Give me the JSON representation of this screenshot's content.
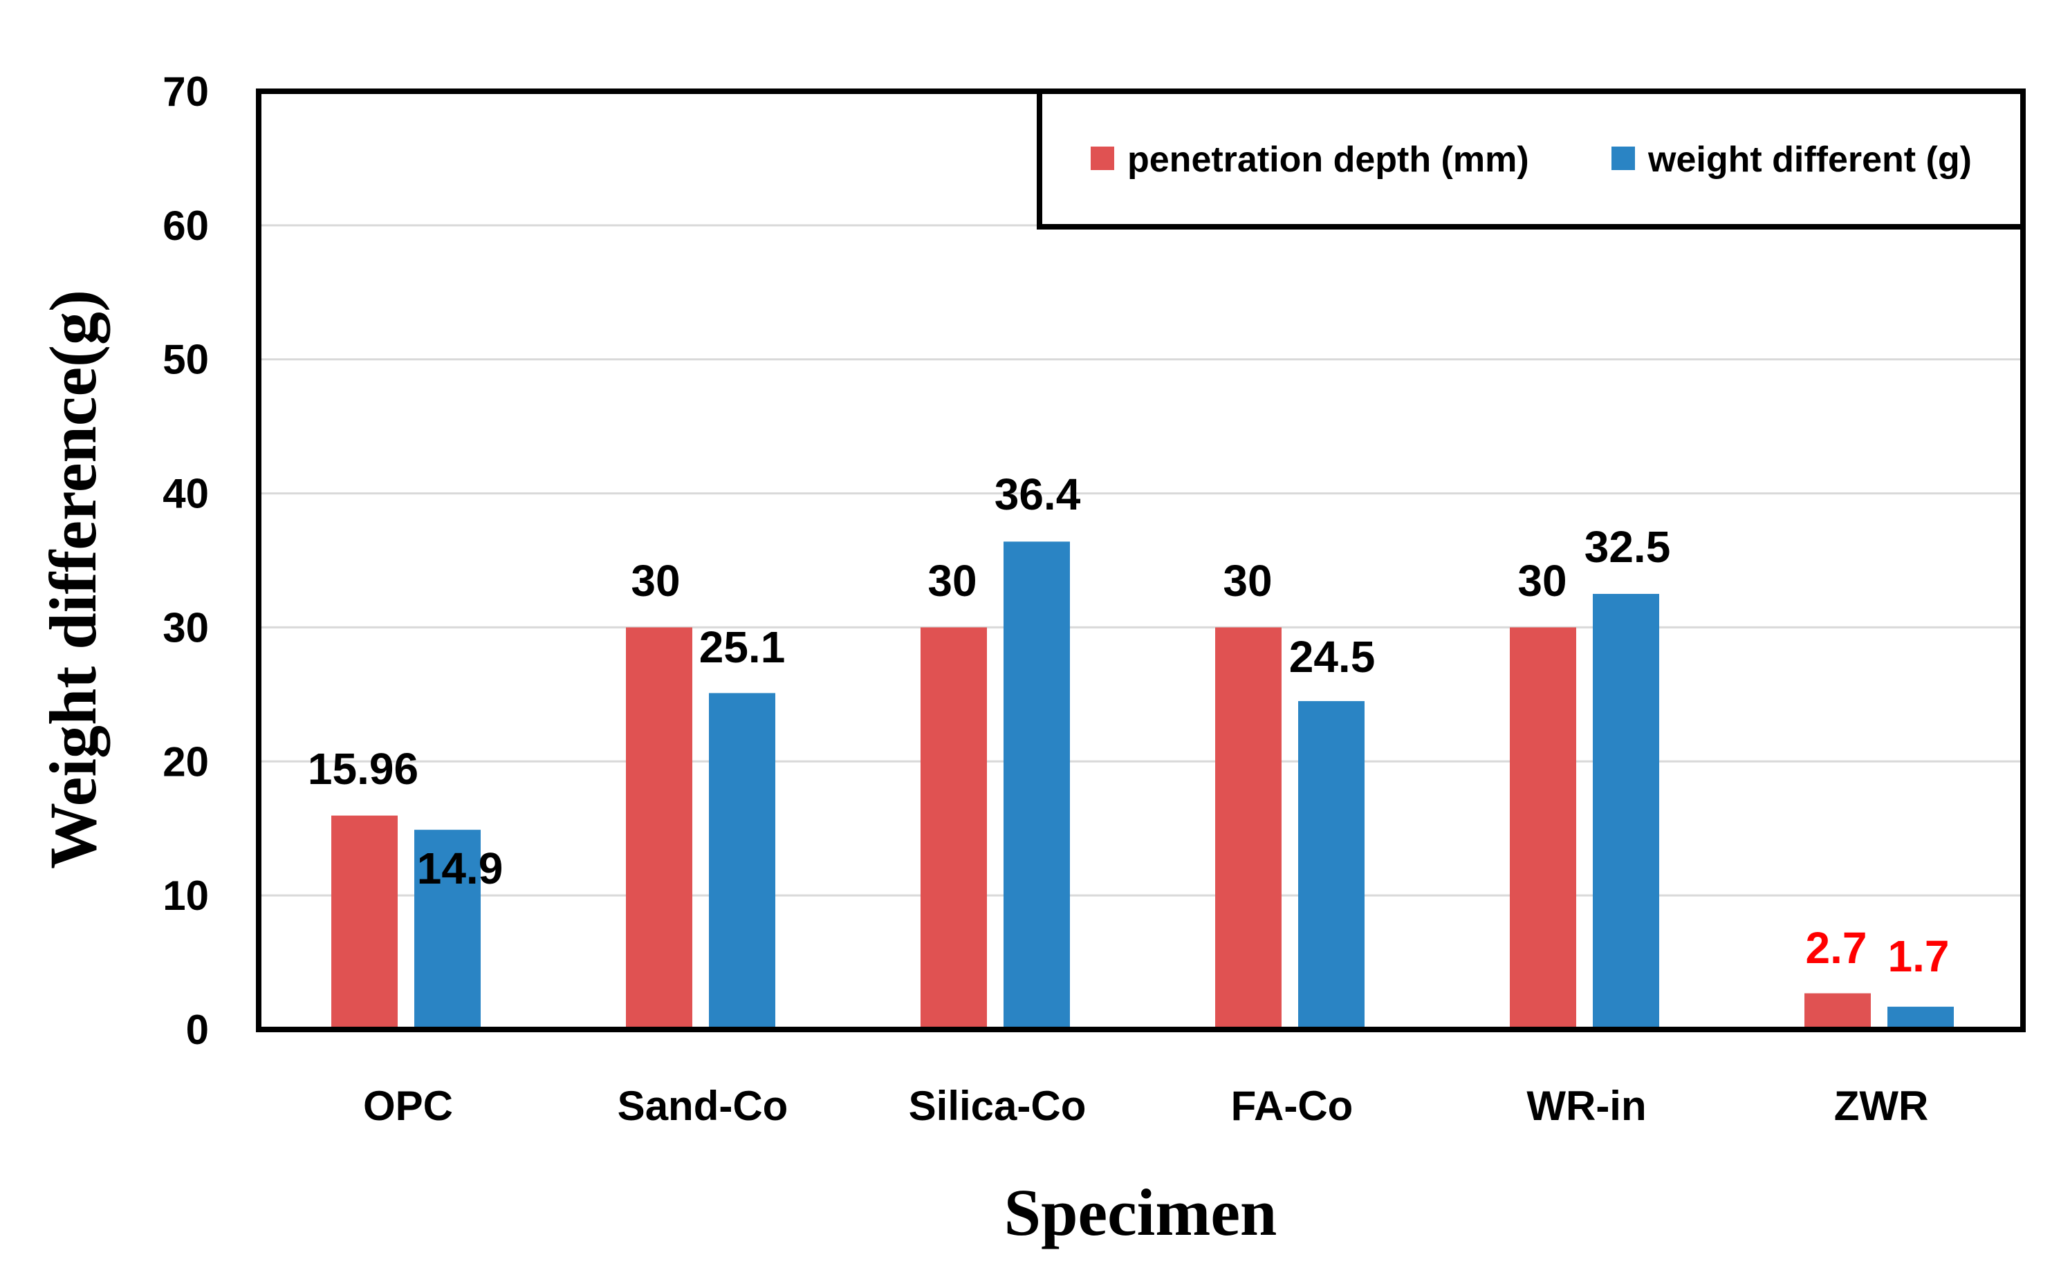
{
  "chart_data": {
    "type": "bar",
    "title": "",
    "xlabel": "Specimen",
    "ylabel": "Weight difference(g)",
    "ylim": [
      0,
      70
    ],
    "yticks": [
      0,
      10,
      20,
      30,
      40,
      50,
      60,
      70
    ],
    "ytick_labels": [
      "0",
      "10",
      "20",
      "30",
      "40",
      "50",
      "60",
      "70"
    ],
    "grid": true,
    "legend_position": "top-right",
    "categories": [
      "OPC",
      "Sand-Co",
      "Silica-Co",
      "FA-Co",
      "WR-in",
      "ZWR"
    ],
    "series": [
      {
        "name": "penetration depth (mm)",
        "color": "#E05252",
        "values": [
          15.96,
          30,
          30,
          30,
          30,
          2.7
        ],
        "labels": [
          "15.96",
          "30",
          "30",
          "30",
          "30",
          "2.7"
        ],
        "label_colors": [
          "#000000",
          "#000000",
          "#000000",
          "#000000",
          "#000000",
          "#FF0000"
        ]
      },
      {
        "name": "weight different (g)",
        "color": "#2A84C4",
        "values": [
          14.9,
          25.1,
          36.4,
          24.5,
          32.5,
          1.7
        ],
        "labels": [
          "14.9",
          "25.1",
          "36.4",
          "24.5",
          "32.5",
          "1.7"
        ],
        "label_colors": [
          "#000000",
          "#000000",
          "#000000",
          "#000000",
          "#000000",
          "#FF0000"
        ]
      }
    ]
  }
}
